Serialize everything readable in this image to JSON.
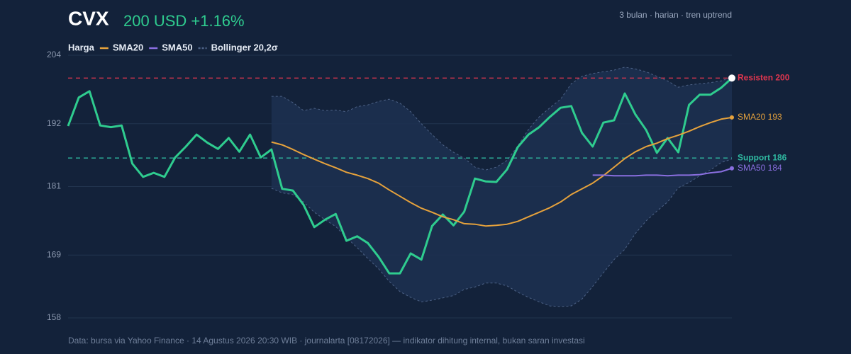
{
  "chart_data": {
    "type": "line",
    "title": "CVX",
    "price_label": "200 USD +1.16%",
    "subtitle": "3 bulan · harian · tren uptrend",
    "footer": "Data: bursa via Yahoo Finance · 14 Agustus 2026 20:30 WIB · journalarta [08172026] — indikator dihitung internal, bukan saran investasi",
    "ylim": [
      158,
      204
    ],
    "yticks": [
      158,
      169,
      181,
      192,
      204
    ],
    "grid": true,
    "series": [
      {
        "name": "Harga",
        "color": "#2fcc8f",
        "values": [
          191.6,
          196.6,
          197.7,
          191.7,
          191.4,
          191.7,
          185.0,
          182.7,
          183.4,
          182.7,
          186.1,
          188.0,
          190.1,
          188.7,
          187.6,
          189.5,
          187.1,
          190.1,
          186.1,
          187.5,
          180.6,
          180.3,
          177.8,
          173.9,
          175.2,
          176.2,
          171.5,
          172.3,
          171.1,
          168.7,
          165.8,
          165.8,
          169.3,
          168.2,
          174.1,
          176.1,
          174.2,
          176.6,
          182.4,
          181.9,
          181.8,
          184.0,
          187.9,
          190.1,
          191.4,
          193.2,
          194.8,
          195.1,
          190.4,
          188.0,
          192.2,
          192.6,
          197.3,
          193.6,
          190.9,
          186.9,
          189.5,
          187.0,
          195.3,
          197.1,
          197.1,
          198.3,
          200
        ]
      },
      {
        "name": "SMA20",
        "color": "#e6a23c",
        "end_label": "SMA20 193",
        "values": [
          null,
          null,
          null,
          null,
          null,
          null,
          null,
          null,
          null,
          null,
          null,
          null,
          null,
          null,
          null,
          null,
          null,
          null,
          null,
          188.8,
          188.3,
          187.5,
          186.6,
          185.8,
          185.0,
          184.3,
          183.5,
          183.0,
          182.4,
          181.6,
          180.4,
          179.3,
          178.2,
          177.2,
          176.5,
          175.7,
          175.2,
          174.5,
          174.4,
          174.1,
          174.2,
          174.4,
          174.9,
          175.7,
          176.5,
          177.3,
          178.3,
          179.6,
          180.6,
          181.6,
          182.9,
          184.4,
          185.9,
          187.1,
          188.0,
          188.6,
          189.4,
          190.0,
          190.7,
          191.5,
          192.2,
          192.8,
          193.1
        ]
      },
      {
        "name": "SMA50",
        "color": "#8a6fe0",
        "end_label": "SMA50 184",
        "values": [
          null,
          null,
          null,
          null,
          null,
          null,
          null,
          null,
          null,
          null,
          null,
          null,
          null,
          null,
          null,
          null,
          null,
          null,
          null,
          null,
          null,
          null,
          null,
          null,
          null,
          null,
          null,
          null,
          null,
          null,
          null,
          null,
          null,
          null,
          null,
          null,
          null,
          null,
          null,
          null,
          null,
          null,
          null,
          null,
          null,
          null,
          null,
          null,
          null,
          183.0,
          183.0,
          182.9,
          182.9,
          182.9,
          183.0,
          183.0,
          182.9,
          183.0,
          183.0,
          183.1,
          183.4,
          183.6,
          184.2
        ]
      }
    ],
    "band": {
      "name": "Bollinger 20,2σ",
      "color": "#4d6286",
      "upper": [
        null,
        null,
        null,
        null,
        null,
        null,
        null,
        null,
        null,
        null,
        null,
        null,
        null,
        null,
        null,
        null,
        null,
        null,
        null,
        196.8,
        196.8,
        195.7,
        194.3,
        194.7,
        194.3,
        194.4,
        194.1,
        195.0,
        195.3,
        195.9,
        196.3,
        195.6,
        194.1,
        192.0,
        190.1,
        188.3,
        187.0,
        186.0,
        184.4,
        183.9,
        184.4,
        185.6,
        188.1,
        191.0,
        193.2,
        194.8,
        196.3,
        199.0,
        200.3,
        200.8,
        201.1,
        201.4,
        201.9,
        201.6,
        201.1,
        200.3,
        199.5,
        198.4,
        198.8,
        199.0,
        199.2,
        199.5,
        200.2
      ],
      "lower": [
        null,
        null,
        null,
        null,
        null,
        null,
        null,
        null,
        null,
        null,
        null,
        null,
        null,
        null,
        null,
        null,
        null,
        null,
        null,
        180.7,
        179.9,
        179.6,
        178.3,
        176.5,
        175.2,
        174.0,
        172.1,
        170.3,
        168.4,
        166.6,
        164.4,
        162.6,
        161.6,
        160.8,
        161.1,
        161.5,
        161.9,
        163.0,
        163.4,
        164.1,
        164.1,
        163.6,
        162.5,
        161.6,
        160.8,
        160.1,
        160.0,
        160.1,
        161.3,
        163.5,
        165.9,
        168.2,
        170.0,
        172.8,
        175.0,
        176.7,
        178.3,
        180.8,
        181.7,
        182.9,
        183.9,
        185.2,
        185.8
      ]
    },
    "levels": [
      {
        "label": "Resisten 200",
        "value": 200,
        "color": "#e0364f"
      },
      {
        "label": "Support 186",
        "value": 186,
        "color": "#2fb8a0"
      }
    ]
  }
}
